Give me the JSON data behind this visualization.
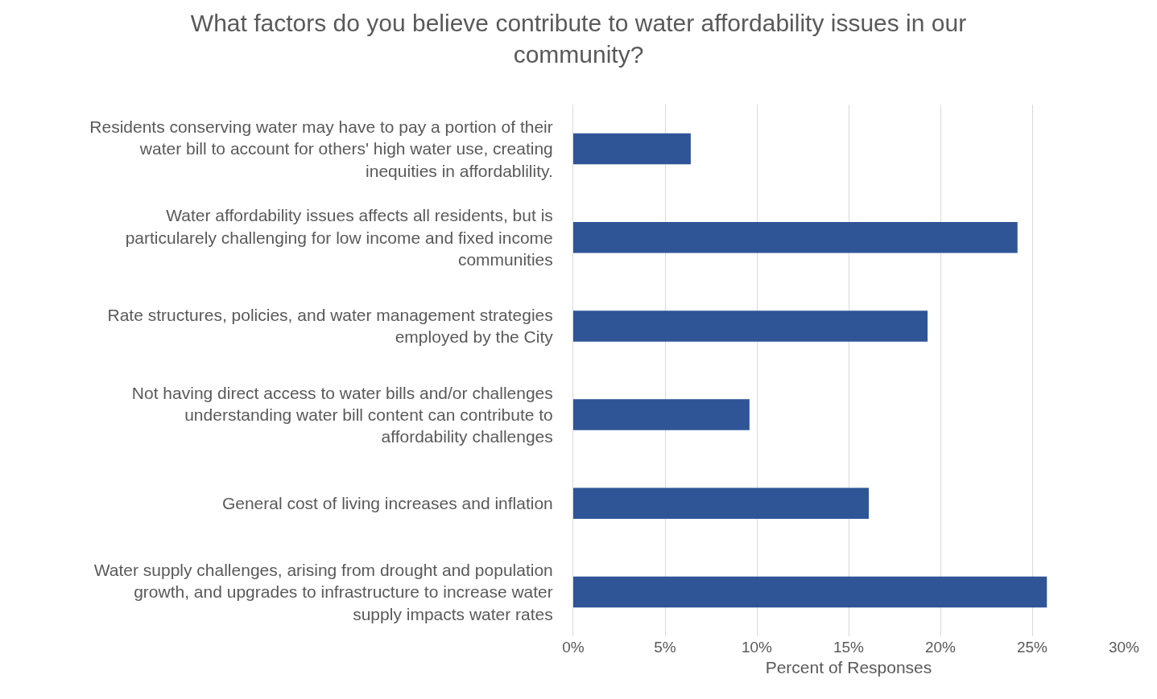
{
  "chart_data": {
    "type": "bar",
    "orientation": "horizontal",
    "title": "What factors do you believe contribute to water affordability issues in our community?",
    "xlabel": "Percent of Responses",
    "categories": [
      "Residents conserving water may have to pay a portion of their water bill to account for others' high water use, creating inequities in affordablility.",
      "Water affordability issues affects all residents, but is particularely challenging for low income and fixed income communities",
      "Rate structures, policies, and water management strategies employed by the City",
      "Not having direct access to water bills and/or challenges understanding water bill content can contribute to affordability challenges",
      "General cost of living increases and inflation",
      "Water supply challenges, arising from drought and population growth, and upgrades to infrastructure to increase water supply impacts water rates"
    ],
    "values": [
      6.4,
      24.2,
      19.3,
      9.6,
      16.1,
      25.8
    ],
    "color": "#2f5597",
    "xlim": [
      0,
      30
    ],
    "xticks": [
      {
        "value": 0,
        "label": "0%"
      },
      {
        "value": 5,
        "label": "5%"
      },
      {
        "value": 10,
        "label": "10%"
      },
      {
        "value": 15,
        "label": "15%"
      },
      {
        "value": 20,
        "label": "20%"
      },
      {
        "value": 25,
        "label": "25%"
      },
      {
        "value": 30,
        "label": "30%"
      }
    ],
    "grid": "x",
    "legend": false
  }
}
